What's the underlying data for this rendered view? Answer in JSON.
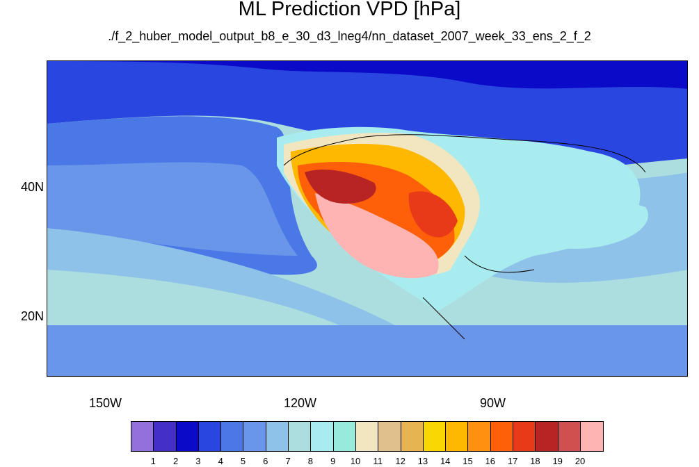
{
  "title": "ML Prediction VPD [hPa]",
  "subtitle": "./f_2_huber_model_output_b8_e_30_d3_lneg4/nn_dataset_2007_week_33_ens_2_f_2",
  "lat_labels": [
    "40N",
    "20N"
  ],
  "lon_labels": [
    "150W",
    "120W",
    "90W"
  ],
  "colorbar": {
    "colors": [
      "#9370db",
      "#4430c8",
      "#0a0ac8",
      "#2a46e0",
      "#4a78e6",
      "#6a96ea",
      "#8ec2e8",
      "#acdee0",
      "#a8ecf0",
      "#98eadc",
      "#f2e6c0",
      "#e0c08c",
      "#e6b450",
      "#f8d800",
      "#ffb800",
      "#ff9010",
      "#fd6008",
      "#e83a18",
      "#b82424",
      "#d05050",
      "#ffb4b4"
    ],
    "labels": [
      "1",
      "2",
      "3",
      "4",
      "5",
      "6",
      "7",
      "8",
      "9",
      "10",
      "11",
      "12",
      "13",
      "14",
      "15",
      "16",
      "17",
      "18",
      "19",
      "20"
    ]
  }
}
